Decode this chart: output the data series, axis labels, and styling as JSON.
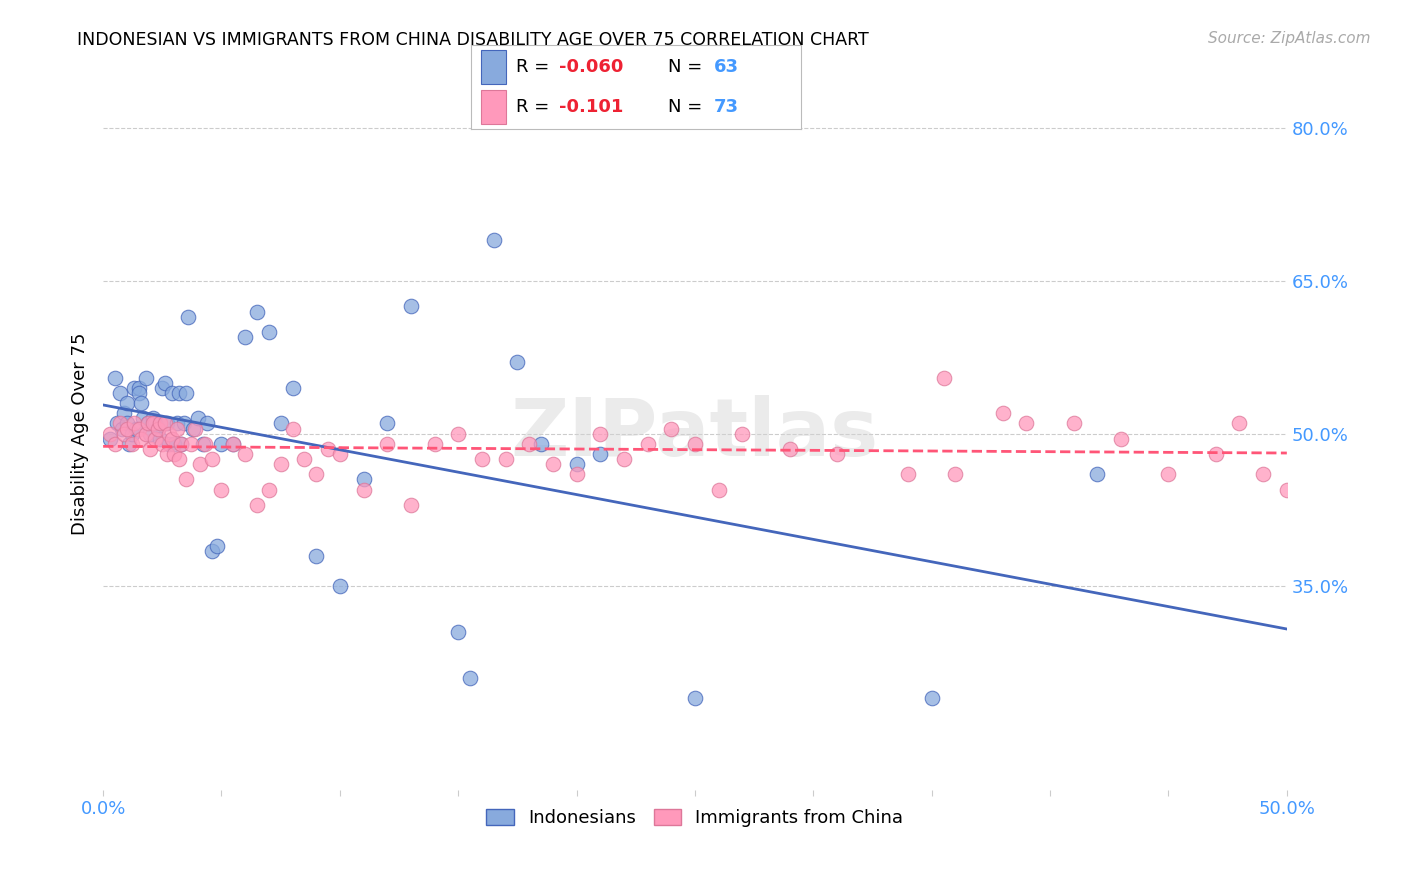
{
  "title": "INDONESIAN VS IMMIGRANTS FROM CHINA DISABILITY AGE OVER 75 CORRELATION CHART",
  "source": "Source: ZipAtlas.com",
  "ylabel": "Disability Age Over 75",
  "xlim": [
    0.0,
    0.5
  ],
  "ylim": [
    0.15,
    0.85
  ],
  "yticks_right": [
    0.35,
    0.5,
    0.65,
    0.8
  ],
  "ytick_labels_right": [
    "35.0%",
    "50.0%",
    "65.0%",
    "80.0%"
  ],
  "xtick_positions": [
    0.0,
    0.05,
    0.1,
    0.15,
    0.2,
    0.25,
    0.3,
    0.35,
    0.4,
    0.45,
    0.5
  ],
  "xtick_labels": [
    "0.0%",
    "",
    "",
    "",
    "",
    "",
    "",
    "",
    "",
    "",
    "50.0%"
  ],
  "color_blue": "#88AADD",
  "color_pink": "#FF99BB",
  "color_blue_line": "#4466BB",
  "color_pink_line": "#FF5577",
  "color_axis_text": "#4499FF",
  "watermark": "ZIPatlas",
  "indonesians_x": [
    0.003,
    0.005,
    0.006,
    0.007,
    0.008,
    0.009,
    0.01,
    0.01,
    0.011,
    0.012,
    0.013,
    0.014,
    0.015,
    0.015,
    0.016,
    0.017,
    0.018,
    0.019,
    0.02,
    0.021,
    0.022,
    0.023,
    0.024,
    0.025,
    0.026,
    0.027,
    0.028,
    0.029,
    0.03,
    0.031,
    0.032,
    0.033,
    0.034,
    0.035,
    0.036,
    0.038,
    0.04,
    0.042,
    0.044,
    0.046,
    0.048,
    0.05,
    0.055,
    0.06,
    0.065,
    0.07,
    0.075,
    0.08,
    0.09,
    0.1,
    0.11,
    0.12,
    0.13,
    0.155,
    0.165,
    0.2,
    0.21,
    0.25,
    0.35,
    0.42,
    0.15,
    0.175,
    0.185
  ],
  "indonesians_y": [
    0.495,
    0.555,
    0.51,
    0.54,
    0.505,
    0.52,
    0.51,
    0.53,
    0.49,
    0.5,
    0.545,
    0.505,
    0.545,
    0.54,
    0.53,
    0.515,
    0.555,
    0.51,
    0.5,
    0.515,
    0.51,
    0.505,
    0.495,
    0.545,
    0.55,
    0.51,
    0.49,
    0.54,
    0.49,
    0.51,
    0.54,
    0.49,
    0.51,
    0.54,
    0.615,
    0.505,
    0.515,
    0.49,
    0.51,
    0.385,
    0.39,
    0.49,
    0.49,
    0.595,
    0.62,
    0.6,
    0.51,
    0.545,
    0.38,
    0.35,
    0.455,
    0.51,
    0.625,
    0.26,
    0.69,
    0.47,
    0.48,
    0.24,
    0.24,
    0.46,
    0.305,
    0.57,
    0.49
  ],
  "china_x": [
    0.003,
    0.005,
    0.007,
    0.009,
    0.01,
    0.012,
    0.013,
    0.015,
    0.016,
    0.018,
    0.019,
    0.02,
    0.021,
    0.022,
    0.023,
    0.024,
    0.025,
    0.026,
    0.027,
    0.028,
    0.029,
    0.03,
    0.031,
    0.032,
    0.033,
    0.035,
    0.037,
    0.039,
    0.041,
    0.043,
    0.046,
    0.05,
    0.055,
    0.06,
    0.065,
    0.07,
    0.075,
    0.08,
    0.085,
    0.09,
    0.095,
    0.1,
    0.11,
    0.12,
    0.13,
    0.14,
    0.15,
    0.16,
    0.17,
    0.18,
    0.19,
    0.2,
    0.21,
    0.22,
    0.23,
    0.24,
    0.25,
    0.26,
    0.27,
    0.29,
    0.31,
    0.34,
    0.36,
    0.38,
    0.39,
    0.41,
    0.43,
    0.45,
    0.47,
    0.49,
    0.5,
    0.355,
    0.48
  ],
  "china_y": [
    0.5,
    0.49,
    0.51,
    0.5,
    0.505,
    0.49,
    0.51,
    0.505,
    0.495,
    0.5,
    0.51,
    0.485,
    0.51,
    0.495,
    0.505,
    0.51,
    0.49,
    0.51,
    0.48,
    0.5,
    0.495,
    0.48,
    0.505,
    0.475,
    0.49,
    0.455,
    0.49,
    0.505,
    0.47,
    0.49,
    0.475,
    0.445,
    0.49,
    0.48,
    0.43,
    0.445,
    0.47,
    0.505,
    0.475,
    0.46,
    0.485,
    0.48,
    0.445,
    0.49,
    0.43,
    0.49,
    0.5,
    0.475,
    0.475,
    0.49,
    0.47,
    0.46,
    0.5,
    0.475,
    0.49,
    0.505,
    0.49,
    0.445,
    0.5,
    0.485,
    0.48,
    0.46,
    0.46,
    0.52,
    0.51,
    0.51,
    0.495,
    0.46,
    0.48,
    0.46,
    0.445,
    0.555,
    0.51
  ]
}
